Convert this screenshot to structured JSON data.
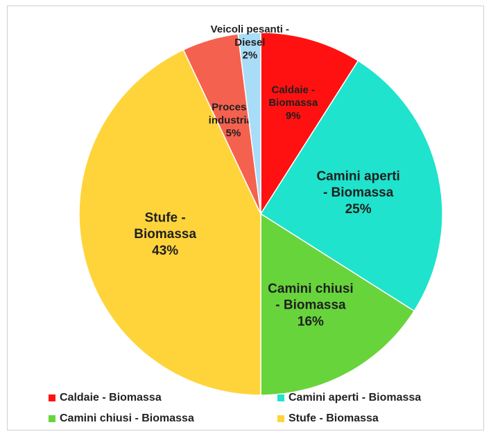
{
  "chart_data": {
    "type": "pie",
    "title": "",
    "slices": [
      {
        "label": "Caldaie - Biomassa",
        "value": 9,
        "value_label": "9%",
        "color": "#ff1111"
      },
      {
        "label": "Camini aperti - Biomassa",
        "value": 25,
        "value_label": "25%",
        "color": "#1fe3cc"
      },
      {
        "label": "Camini chiusi - Biomassa",
        "value": 16,
        "value_label": "16%",
        "color": "#68d43c"
      },
      {
        "label": "Stufe - Biomassa",
        "value": 43,
        "value_label": "43%",
        "color": "#ffd43b"
      },
      {
        "label": "Processi industriali",
        "value": 5,
        "value_label": "5%",
        "color": "#f5614f"
      },
      {
        "label": "Veicoli pesanti - Diesel",
        "value": 2,
        "value_label": "2%",
        "color": "#a9dcf6"
      }
    ],
    "slice_label_lines": [
      [
        "Caldaie -",
        "Biomassa",
        "9%"
      ],
      [
        "Camini aperti",
        "- Biomassa",
        "25%"
      ],
      [
        "Camini chiusi",
        "- Biomassa",
        "16%"
      ],
      [
        "Stufe -",
        "Biomassa",
        "43%"
      ],
      [
        "Processi",
        "industriali",
        "5%"
      ],
      [
        "Veicoli pesanti -",
        "Diesel",
        "2%"
      ]
    ],
    "legend": {
      "placement": "bottom",
      "entries": [
        {
          "label": "Caldaie - Biomassa",
          "color": "#ff1111"
        },
        {
          "label": "Camini aperti - Biomassa",
          "color": "#1fe3cc"
        },
        {
          "label": "Camini chiusi - Biomassa",
          "color": "#68d43c"
        },
        {
          "label": "Stufe - Biomassa",
          "color": "#ffd43b"
        }
      ]
    }
  }
}
